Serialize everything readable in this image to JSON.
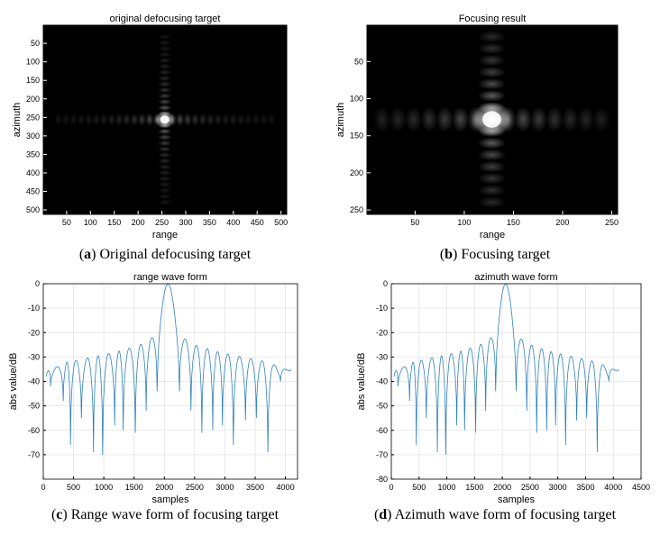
{
  "chart_data": [
    {
      "type": "heatmap",
      "title": "original defocusing target",
      "xlabel": "range",
      "ylabel": "azimuth",
      "xticks": [
        50,
        100,
        150,
        200,
        250,
        300,
        350,
        400,
        450,
        500
      ],
      "yticks": [
        50,
        100,
        150,
        200,
        250,
        300,
        350,
        400,
        450,
        500
      ],
      "xlim": [
        1,
        512
      ],
      "ylim": [
        1,
        512
      ],
      "peak": {
        "x": 256,
        "y": 256
      },
      "colormap": "gray",
      "caption_letter": "a",
      "caption_text": "Original defocusing target"
    },
    {
      "type": "heatmap",
      "title": "Focusing result",
      "xlabel": "range",
      "ylabel": "azimuth",
      "xticks": [
        50,
        100,
        150,
        200,
        250
      ],
      "yticks": [
        50,
        100,
        150,
        200,
        250
      ],
      "xlim": [
        1,
        256
      ],
      "ylim": [
        1,
        256
      ],
      "peak": {
        "x": 128,
        "y": 128
      },
      "colormap": "gray",
      "caption_letter": "b",
      "caption_text": "Focusing target"
    },
    {
      "type": "line",
      "title": "range wave form",
      "xlabel": "samples",
      "ylabel": "abs value/dB",
      "xlim": [
        0,
        4200
      ],
      "ylim": [
        -80,
        0
      ],
      "xticks": [
        0,
        500,
        1000,
        1500,
        2000,
        2500,
        3000,
        3500,
        4000
      ],
      "yticks": [
        0,
        -10,
        -20,
        -30,
        -40,
        -50,
        -60,
        -70
      ],
      "series": [
        {
          "name": "range",
          "color": "#2f82b8",
          "envelope_x": [
            50,
            400,
            800,
            1200,
            1600,
            1800,
            1950,
            2048,
            2150,
            2300,
            2500,
            2900,
            3300,
            3700,
            4096
          ],
          "envelope_y": [
            -36,
            -32,
            -30,
            -28,
            -25,
            -22,
            -17,
            0,
            -17,
            -22,
            -25,
            -28,
            -30,
            -32,
            -36
          ],
          "null_x": [
            120,
            330,
            450,
            630,
            830,
            980,
            1180,
            1320,
            1520,
            1700,
            1880,
            2250,
            2440,
            2620,
            2800,
            2960,
            3140,
            3340,
            3520,
            3710,
            3920
          ],
          "null_y": [
            -42,
            -48,
            -66,
            -55,
            -69,
            -70,
            -58,
            -60,
            -61,
            -52,
            -44,
            -44,
            -52,
            -61,
            -60,
            -58,
            -66,
            -56,
            -55,
            -69,
            -40
          ]
        }
      ],
      "caption_letter": "c",
      "caption_text": "Range wave form of focusing target"
    },
    {
      "type": "line",
      "title": "azimuth wave form",
      "xlabel": "samples",
      "ylabel": "abs value/dB",
      "xlim": [
        0,
        4500
      ],
      "ylim": [
        -80,
        0
      ],
      "xticks": [
        0,
        500,
        1000,
        1500,
        2000,
        2500,
        3000,
        3500,
        4000,
        4500
      ],
      "yticks": [
        0,
        -10,
        -20,
        -30,
        -40,
        -50,
        -60,
        -70,
        -80
      ],
      "series": [
        {
          "name": "azimuth",
          "color": "#2f82b8",
          "envelope_x": [
            50,
            400,
            800,
            1200,
            1600,
            1800,
            1950,
            2048,
            2150,
            2300,
            2500,
            2900,
            3300,
            3700,
            4096
          ],
          "envelope_y": [
            -36,
            -32,
            -30,
            -28,
            -25,
            -22,
            -17,
            0,
            -17,
            -22,
            -25,
            -28,
            -30,
            -32,
            -36
          ],
          "null_x": [
            120,
            330,
            450,
            630,
            830,
            980,
            1180,
            1320,
            1520,
            1700,
            1880,
            2250,
            2440,
            2620,
            2800,
            2960,
            3140,
            3340,
            3520,
            3710,
            3920
          ],
          "null_y": [
            -42,
            -48,
            -66,
            -55,
            -69,
            -70,
            -58,
            -60,
            -61,
            -52,
            -44,
            -44,
            -52,
            -61,
            -60,
            -58,
            -66,
            -56,
            -55,
            -69,
            -40
          ]
        }
      ],
      "caption_letter": "d",
      "caption_text": "Azimuth wave form of focusing target"
    }
  ]
}
